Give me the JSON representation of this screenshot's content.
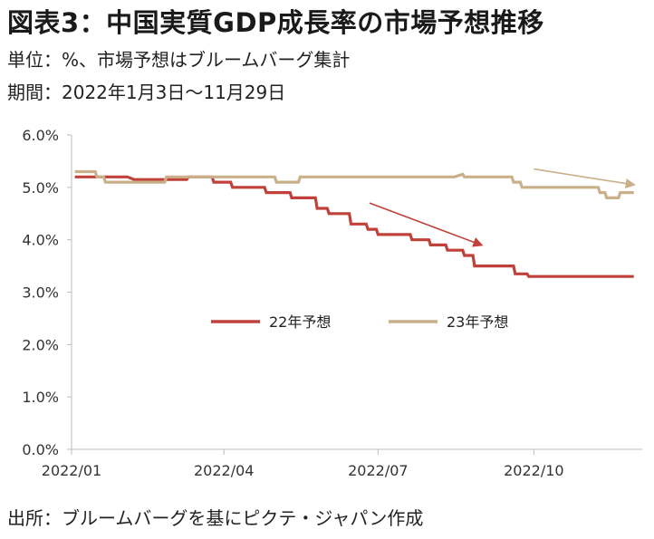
{
  "header": {
    "title": "図表3：中国実質GDP成長率の市場予想推移",
    "unit_line": "単位：%、市場予想はブルームバーグ集計",
    "period_line": "期間：2022年1月3日～11月29日"
  },
  "footer": {
    "source": "出所：ブルームバーグを基にピクテ・ジャパン作成"
  },
  "colors": {
    "series_22": "#c0403a",
    "series_23": "#c9b08a",
    "axis": "#bdbdbd"
  },
  "chart_data": {
    "type": "line",
    "title": "",
    "xlabel": "",
    "ylabel": "",
    "ylim": [
      0,
      6
    ],
    "yticks": [
      "0.0%",
      "1.0%",
      "2.0%",
      "3.0%",
      "4.0%",
      "5.0%",
      "6.0%"
    ],
    "xticks": [
      {
        "date": "2022-01-01",
        "label": "2022/01"
      },
      {
        "date": "2022-04-01",
        "label": "2022/04"
      },
      {
        "date": "2022-07-01",
        "label": "2022/07"
      },
      {
        "date": "2022-10-01",
        "label": "2022/10"
      }
    ],
    "xlim": [
      "2022-01-01",
      "2022-12-04"
    ],
    "legend_position": "center",
    "series": [
      {
        "name": "22年予想",
        "color": "#c0403a",
        "points": [
          [
            "2022-01-03",
            5.2
          ],
          [
            "2022-02-03",
            5.2
          ],
          [
            "2022-02-07",
            5.15
          ],
          [
            "2022-03-10",
            5.15
          ],
          [
            "2022-03-11",
            5.2
          ],
          [
            "2022-03-25",
            5.2
          ],
          [
            "2022-03-26",
            5.1
          ],
          [
            "2022-04-05",
            5.1
          ],
          [
            "2022-04-06",
            5.0
          ],
          [
            "2022-04-25",
            5.0
          ],
          [
            "2022-04-26",
            4.9
          ],
          [
            "2022-05-10",
            4.9
          ],
          [
            "2022-05-11",
            4.8
          ],
          [
            "2022-05-25",
            4.8
          ],
          [
            "2022-05-26",
            4.6
          ],
          [
            "2022-06-01",
            4.6
          ],
          [
            "2022-06-02",
            4.5
          ],
          [
            "2022-06-14",
            4.5
          ],
          [
            "2022-06-15",
            4.3
          ],
          [
            "2022-06-24",
            4.3
          ],
          [
            "2022-06-25",
            4.2
          ],
          [
            "2022-06-30",
            4.2
          ],
          [
            "2022-07-01",
            4.1
          ],
          [
            "2022-07-20",
            4.1
          ],
          [
            "2022-07-21",
            4.0
          ],
          [
            "2022-07-31",
            4.0
          ],
          [
            "2022-08-01",
            3.9
          ],
          [
            "2022-08-10",
            3.9
          ],
          [
            "2022-08-11",
            3.8
          ],
          [
            "2022-08-20",
            3.8
          ],
          [
            "2022-08-21",
            3.7
          ],
          [
            "2022-08-26",
            3.7
          ],
          [
            "2022-08-27",
            3.5
          ],
          [
            "2022-09-19",
            3.5
          ],
          [
            "2022-09-20",
            3.35
          ],
          [
            "2022-09-27",
            3.35
          ],
          [
            "2022-09-28",
            3.3
          ],
          [
            "2022-11-29",
            3.3
          ]
        ]
      },
      {
        "name": "23年予想",
        "color": "#c9b08a",
        "points": [
          [
            "2022-01-03",
            5.3
          ],
          [
            "2022-01-15",
            5.3
          ],
          [
            "2022-01-16",
            5.2
          ],
          [
            "2022-01-20",
            5.2
          ],
          [
            "2022-01-21",
            5.1
          ],
          [
            "2022-02-25",
            5.1
          ],
          [
            "2022-02-26",
            5.2
          ],
          [
            "2022-05-01",
            5.2
          ],
          [
            "2022-05-02",
            5.1
          ],
          [
            "2022-05-15",
            5.1
          ],
          [
            "2022-05-16",
            5.2
          ],
          [
            "2022-08-15",
            5.2
          ],
          [
            "2022-08-20",
            5.25
          ],
          [
            "2022-08-21",
            5.2
          ],
          [
            "2022-09-18",
            5.2
          ],
          [
            "2022-09-19",
            5.1
          ],
          [
            "2022-09-23",
            5.1
          ],
          [
            "2022-09-24",
            5.0
          ],
          [
            "2022-11-08",
            5.0
          ],
          [
            "2022-11-09",
            4.9
          ],
          [
            "2022-11-12",
            4.9
          ],
          [
            "2022-11-13",
            4.8
          ],
          [
            "2022-11-20",
            4.8
          ],
          [
            "2022-11-21",
            4.9
          ],
          [
            "2022-11-29",
            4.9
          ]
        ]
      }
    ],
    "annotations": [
      {
        "type": "arrow",
        "series": "22年予想",
        "from": [
          "2022-06-26",
          4.7
        ],
        "to": [
          "2022-08-31",
          3.9
        ]
      },
      {
        "type": "arrow",
        "series": "23年予想",
        "from": [
          "2022-10-01",
          5.35
        ],
        "to": [
          "2022-11-29",
          5.05
        ]
      }
    ]
  }
}
